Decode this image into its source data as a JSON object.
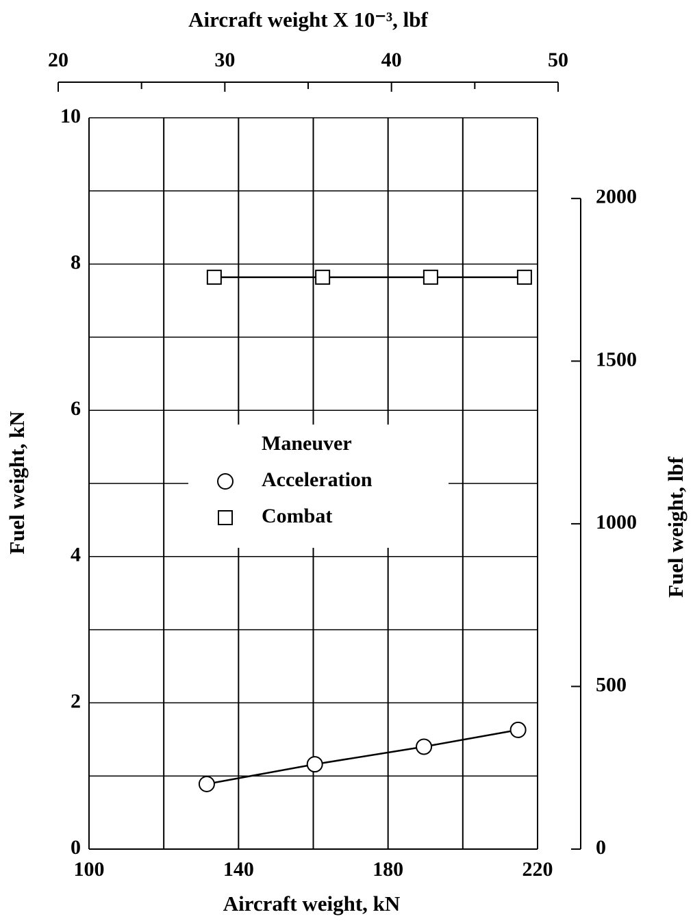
{
  "chart_data": {
    "type": "line",
    "xlabel": "Aircraft weight, kN",
    "ylabel": "Fuel weight, kN",
    "y2label": "Fuel weight, lbf",
    "x2label": "Aircraft weight X 10⁻³, lbf",
    "legend_title": "Maneuver",
    "legend": "center-left",
    "xlim": [
      100,
      220
    ],
    "xticks": [
      100,
      140,
      180,
      220
    ],
    "x_minor_ticks": [
      120,
      160,
      200
    ],
    "ylim": [
      0,
      10
    ],
    "yticks": [
      0,
      2,
      4,
      6,
      8,
      10
    ],
    "y_minor_ticks": [
      1,
      3,
      5,
      7,
      9
    ],
    "y2lim": [
      0,
      2248
    ],
    "y2ticks": [
      0,
      500,
      1000,
      1500,
      2000
    ],
    "x2lim": [
      20,
      50
    ],
    "x2ticks": [
      20,
      30,
      40,
      50
    ],
    "x2_minor_ticks": [
      25,
      35,
      45
    ],
    "grid": true,
    "series": [
      {
        "name": "Acceleration",
        "marker": "circle",
        "color": "#000000",
        "x": [
          131.5,
          160.4,
          189.6,
          214.8
        ],
        "values": [
          0.89,
          1.16,
          1.4,
          1.63
        ]
      },
      {
        "name": "Combat",
        "marker": "square",
        "color": "#000000",
        "x": [
          133.5,
          162.5,
          191.4,
          216.5
        ],
        "values": [
          7.82,
          7.82,
          7.82,
          7.82
        ]
      }
    ]
  }
}
